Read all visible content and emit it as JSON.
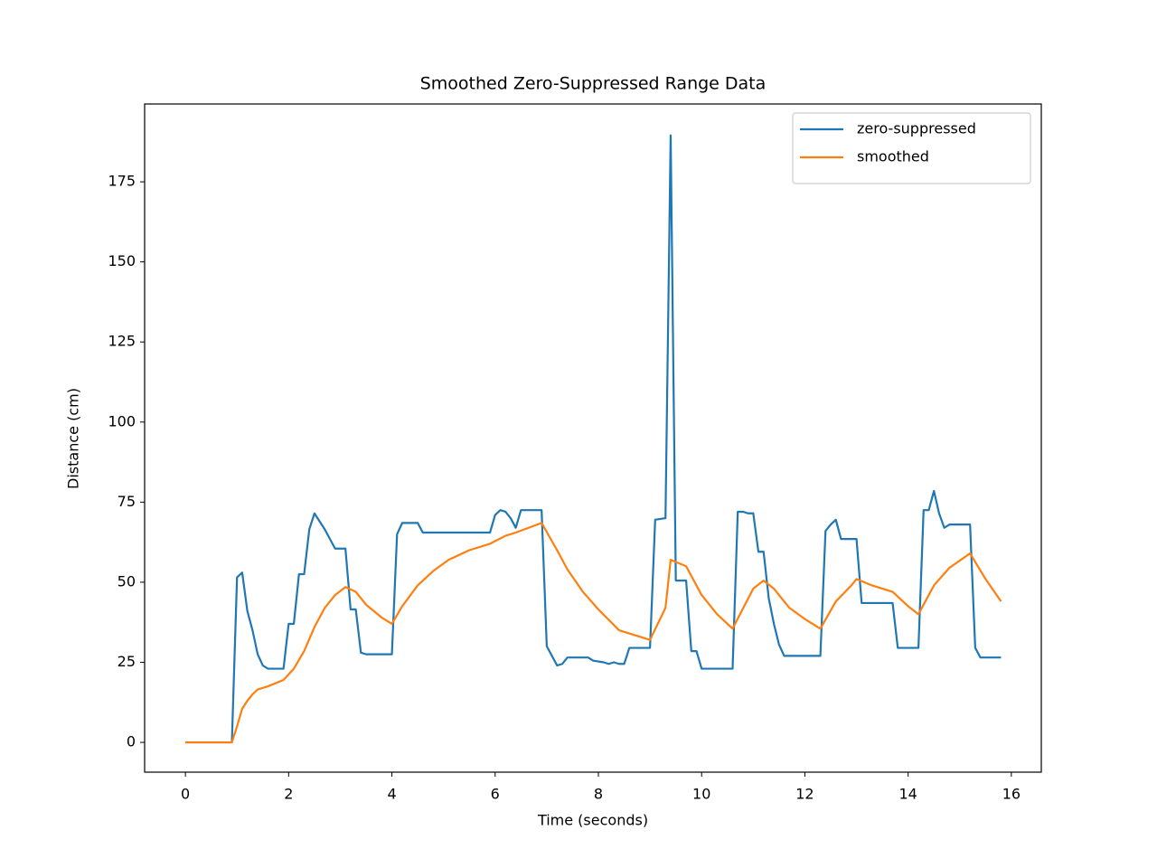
{
  "chart_data": {
    "type": "line",
    "title": "Smoothed Zero-Suppressed Range Data",
    "xlabel": "Time (seconds)",
    "ylabel": "Distance (cm)",
    "xlim": [
      -0.79,
      16.58
    ],
    "ylim": [
      -9.3,
      199.3
    ],
    "xticks": [
      0,
      2,
      4,
      6,
      8,
      10,
      12,
      14,
      16
    ],
    "yticks": [
      0,
      25,
      50,
      75,
      100,
      125,
      150,
      175
    ],
    "legend": "upper right",
    "series": [
      {
        "name": "zero-suppressed",
        "color": "#1f77b4",
        "x": [
          0,
          0.9,
          1.0,
          1.1,
          1.2,
          1.3,
          1.4,
          1.5,
          1.6,
          1.9,
          2.0,
          2.1,
          2.2,
          2.3,
          2.4,
          2.5,
          2.6,
          2.7,
          2.8,
          2.9,
          3.1,
          3.2,
          3.3,
          3.4,
          3.5,
          4.0,
          4.1,
          4.2,
          4.5,
          4.6,
          5.9,
          6.0,
          6.1,
          6.2,
          6.3,
          6.4,
          6.5,
          6.9,
          7.0,
          7.1,
          7.2,
          7.3,
          7.4,
          7.8,
          7.9,
          8.1,
          8.2,
          8.3,
          8.4,
          8.5,
          8.6,
          9.0,
          9.1,
          9.3,
          9.4,
          9.5,
          9.7,
          9.8,
          9.9,
          10.0,
          10.6,
          10.7,
          10.8,
          10.9,
          11.0,
          11.1,
          11.2,
          11.3,
          11.4,
          11.5,
          11.6,
          12.3,
          12.4,
          12.5,
          12.6,
          12.7,
          13.0,
          13.1,
          13.7,
          13.8,
          14.2,
          14.3,
          14.4,
          14.5,
          14.6,
          14.7,
          14.8,
          15.2,
          15.3,
          15.4,
          15.8
        ],
        "values": [
          0,
          0,
          51.5,
          53,
          41,
          35,
          27.5,
          24,
          23,
          23,
          37,
          37,
          52.5,
          52.5,
          66.5,
          71.5,
          69,
          66.5,
          63.5,
          60.5,
          60.5,
          41.5,
          41.5,
          28,
          27.5,
          27.5,
          65,
          68.5,
          68.5,
          65.5,
          65.5,
          71,
          72.5,
          72,
          70,
          67,
          72.5,
          72.5,
          30,
          27,
          24,
          24.5,
          26.5,
          26.5,
          25.5,
          25,
          24.5,
          25,
          24.5,
          24.5,
          29.5,
          29.5,
          69.5,
          70,
          189.5,
          50.5,
          50.5,
          28.5,
          28.5,
          23,
          23,
          72,
          72,
          71.5,
          71.5,
          59.5,
          59.5,
          45,
          37,
          30.5,
          27,
          27,
          66,
          68,
          69.5,
          63.5,
          63.5,
          43.5,
          43.5,
          29.5,
          29.5,
          72.5,
          72.5,
          78.5,
          71.5,
          67,
          68,
          68,
          29.5,
          26.5,
          26.5
        ]
      },
      {
        "name": "smoothed",
        "color": "#ff7f0e",
        "x": [
          0,
          0.9,
          1.0,
          1.1,
          1.2,
          1.3,
          1.4,
          1.6,
          1.9,
          2.1,
          2.3,
          2.5,
          2.7,
          2.9,
          3.1,
          3.3,
          3.5,
          3.8,
          4.0,
          4.2,
          4.5,
          4.8,
          5.1,
          5.5,
          5.9,
          6.2,
          6.4,
          6.9,
          7.2,
          7.4,
          7.7,
          8.0,
          8.4,
          9.0,
          9.3,
          9.4,
          9.7,
          10.0,
          10.3,
          10.6,
          11.0,
          11.2,
          11.4,
          11.7,
          12.0,
          12.3,
          12.6,
          12.9,
          13.0,
          13.3,
          13.7,
          14.0,
          14.2,
          14.5,
          14.8,
          15.2,
          15.5,
          15.8
        ],
        "values": [
          0,
          0,
          5,
          10.5,
          13,
          15,
          16.5,
          17.5,
          19.5,
          23,
          28.5,
          36,
          42,
          46,
          48.5,
          47,
          43,
          39,
          37,
          42.5,
          49,
          53.5,
          57,
          60,
          62,
          64.5,
          65.5,
          68.5,
          60,
          54,
          47,
          41.5,
          35,
          32,
          42,
          57,
          55,
          46,
          40,
          35.5,
          48,
          50.5,
          48,
          42,
          38.5,
          35.5,
          44,
          49,
          51,
          49,
          47,
          42.5,
          40,
          49,
          54.5,
          59,
          51,
          44
        ]
      }
    ]
  }
}
